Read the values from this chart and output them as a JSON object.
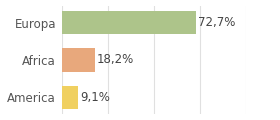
{
  "categories": [
    "Europa",
    "Africa",
    "America"
  ],
  "values": [
    72.7,
    18.2,
    9.1
  ],
  "labels": [
    "72,7%",
    "18,2%",
    "9,1%"
  ],
  "bar_colors": [
    "#adc48a",
    "#e8a87c",
    "#f0d060"
  ],
  "background_color": "#ffffff",
  "xlim": [
    0,
    100
  ],
  "bar_height": 0.62,
  "label_fontsize": 8.5,
  "tick_fontsize": 8.5,
  "grid_color": "#e0e0e0",
  "grid_ticks": [
    0,
    25,
    50,
    75,
    100
  ]
}
